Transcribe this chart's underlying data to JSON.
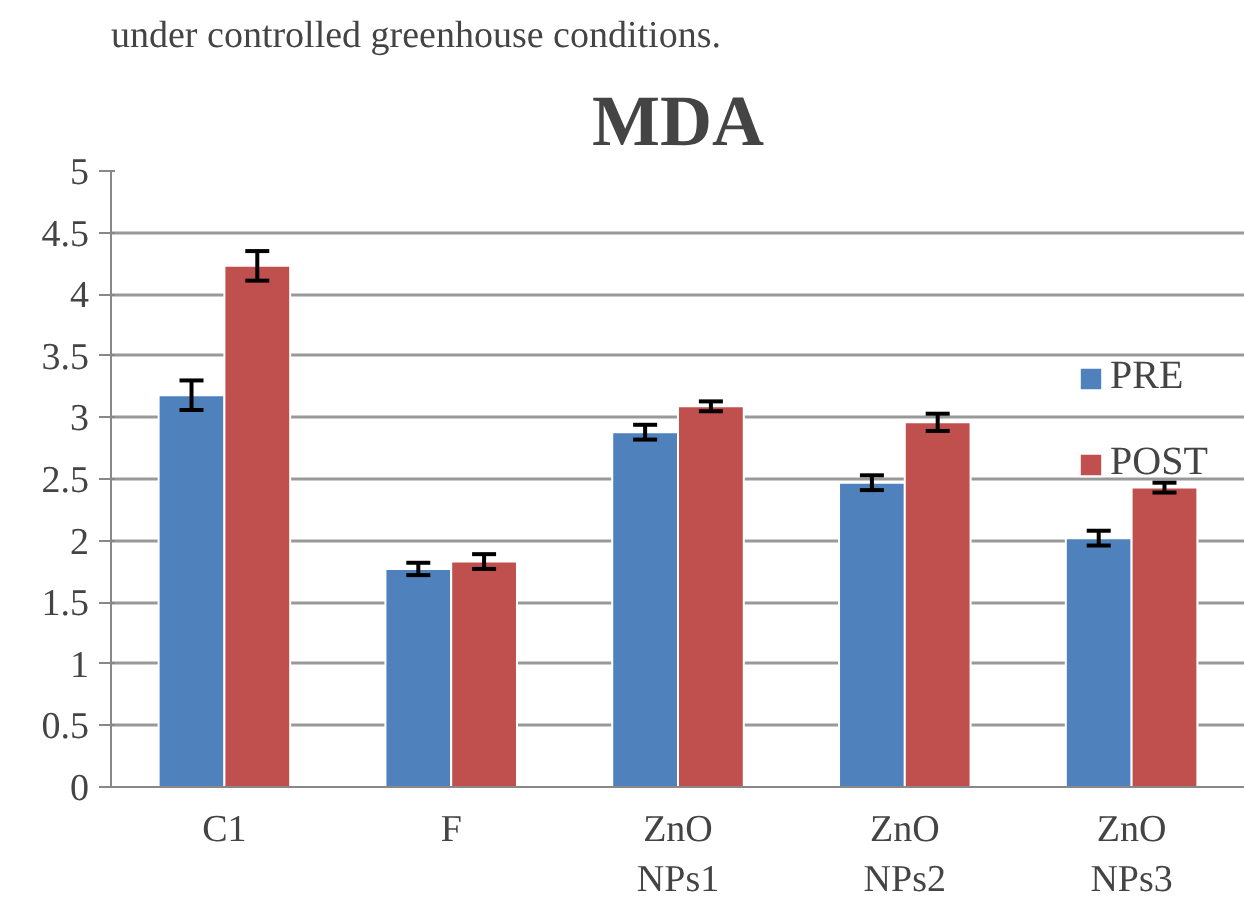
{
  "chart_data": {
    "type": "bar",
    "title": "MDA",
    "annotations": [
      "under controlled greenhouse conditions."
    ],
    "categories": [
      "C1",
      "F",
      "ZnO\nNPs1",
      "ZnO\nNPs2",
      "ZnO\nNPs3"
    ],
    "series": [
      {
        "name": "PRE",
        "color": "#4f81bd",
        "values": [
          3.18,
          1.77,
          2.88,
          2.47,
          2.02
        ],
        "errors": [
          0.12,
          0.05,
          0.06,
          0.06,
          0.06
        ]
      },
      {
        "name": "POST",
        "color": "#c0504d",
        "values": [
          4.23,
          1.83,
          3.09,
          2.96,
          2.43
        ],
        "errors": [
          0.12,
          0.06,
          0.04,
          0.07,
          0.04
        ]
      }
    ],
    "ylim": [
      0,
      5
    ],
    "yticks": [
      0,
      0.5,
      1,
      1.5,
      2,
      2.5,
      3,
      3.5,
      4,
      4.5,
      5
    ],
    "grid": "y",
    "legend": "right"
  }
}
